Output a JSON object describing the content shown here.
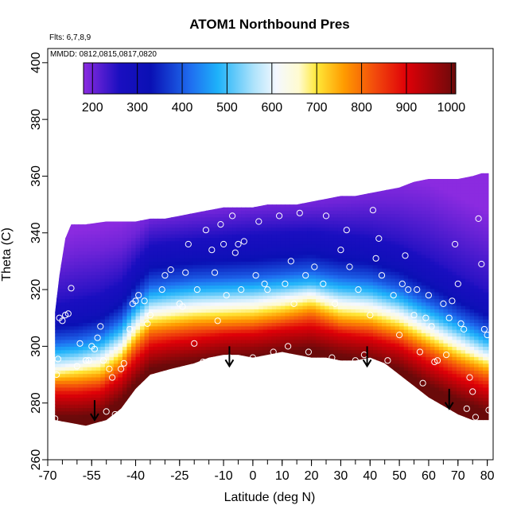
{
  "chart_data": {
    "type": "heatmap",
    "title": "ATOM1 Northbound Pres",
    "annotations": {
      "flights": "Flts: 6,7,8,9",
      "dates": "MMDD: 0812,0815,0817,0820"
    },
    "xlabel": "Latitude (deg N)",
    "ylabel": "Theta (C)",
    "xlim": [
      -70,
      82
    ],
    "ylim": [
      260,
      405
    ],
    "x_ticks": [
      -70,
      -55,
      -40,
      -25,
      -10,
      0,
      10,
      20,
      30,
      40,
      50,
      60,
      70,
      80
    ],
    "x_tick_labels": [
      "-70",
      "-55",
      "-40",
      "-25",
      "-10",
      "0",
      "10",
      "20",
      "30",
      "40",
      "50",
      "60",
      "70",
      "80"
    ],
    "x_minor_step": 5,
    "y_ticks": [
      260,
      280,
      300,
      320,
      340,
      360,
      380,
      400
    ],
    "y_tick_labels": [
      "260",
      "280",
      "300",
      "320",
      "340",
      "360",
      "380",
      "400"
    ],
    "colorbar": {
      "min": 180,
      "max": 1010,
      "ticks": [
        200,
        300,
        400,
        500,
        600,
        700,
        800,
        900,
        1000
      ],
      "tick_labels": [
        "200",
        "300",
        "400",
        "500",
        "600",
        "700",
        "800",
        "900",
        "1000"
      ],
      "stops": [
        {
          "value": 180,
          "color": "#8b2be0"
        },
        {
          "value": 260,
          "color": "#1a0fc0"
        },
        {
          "value": 330,
          "color": "#0a10b4"
        },
        {
          "value": 420,
          "color": "#1f6ff0"
        },
        {
          "value": 480,
          "color": "#1eb2fa"
        },
        {
          "value": 560,
          "color": "#aee3fb"
        },
        {
          "value": 610,
          "color": "#f4f8ff"
        },
        {
          "value": 660,
          "color": "#fffbd0"
        },
        {
          "value": 700,
          "color": "#ffe838"
        },
        {
          "value": 760,
          "color": "#ff9c00"
        },
        {
          "value": 830,
          "color": "#f24a0c"
        },
        {
          "value": 900,
          "color": "#df0008"
        },
        {
          "value": 1010,
          "color": "#6a0a0a"
        }
      ]
    },
    "domain_bottom": [
      [
        -67.5,
        274
      ],
      [
        -57,
        272
      ],
      [
        -50,
        274
      ],
      [
        -45,
        278
      ],
      [
        -40,
        285
      ],
      [
        -35,
        290
      ],
      [
        -28,
        292
      ],
      [
        -20,
        294
      ],
      [
        -15,
        296
      ],
      [
        -10,
        297
      ],
      [
        -5,
        297
      ],
      [
        0,
        296
      ],
      [
        5,
        297
      ],
      [
        10,
        298
      ],
      [
        15,
        297
      ],
      [
        20,
        296
      ],
      [
        25,
        296
      ],
      [
        30,
        295
      ],
      [
        35,
        295
      ],
      [
        40,
        296
      ],
      [
        45,
        294
      ],
      [
        50,
        290
      ],
      [
        55,
        286
      ],
      [
        60,
        282
      ],
      [
        65,
        279
      ],
      [
        70,
        276
      ],
      [
        75,
        274
      ],
      [
        80.5,
        274
      ]
    ],
    "domain_top": [
      [
        -67.5,
        312
      ],
      [
        -66,
        325
      ],
      [
        -64,
        338
      ],
      [
        -62,
        343
      ],
      [
        -57,
        343
      ],
      [
        -50,
        344
      ],
      [
        -40,
        344
      ],
      [
        -35,
        345
      ],
      [
        -30,
        345
      ],
      [
        -25,
        346
      ],
      [
        -20,
        347
      ],
      [
        -15,
        348
      ],
      [
        -10,
        349
      ],
      [
        -5,
        349
      ],
      [
        0,
        349
      ],
      [
        5,
        350
      ],
      [
        10,
        350
      ],
      [
        15,
        350
      ],
      [
        20,
        351
      ],
      [
        25,
        352
      ],
      [
        30,
        353
      ],
      [
        35,
        353
      ],
      [
        40,
        354
      ],
      [
        45,
        355
      ],
      [
        50,
        356
      ],
      [
        55,
        358
      ],
      [
        60,
        359
      ],
      [
        65,
        359
      ],
      [
        70,
        359
      ],
      [
        75,
        360
      ],
      [
        78,
        361
      ],
      [
        80.5,
        361
      ]
    ],
    "contour_isolines": {
      "description": "approximate centre (theta) of each pressure level vs latitude",
      "latitudes": [
        -68,
        -60,
        -52,
        -45,
        -40,
        -35,
        -28,
        -20,
        -10,
        0,
        10,
        20,
        30,
        40,
        50,
        60,
        70,
        80
      ],
      "levels": [
        {
          "pressure": 900,
          "theta": [
            283,
            283,
            284,
            289,
            295,
            300,
            301.5,
            302.5,
            304,
            304.5,
            306,
            307,
            304.5,
            303,
            300,
            294,
            289,
            285
          ]
        },
        {
          "pressure": 800,
          "theta": [
            287,
            287,
            288,
            293,
            300,
            305,
            306,
            307,
            307.5,
            308,
            309.5,
            311.5,
            308,
            307,
            304,
            299,
            294,
            290
          ]
        },
        {
          "pressure": 700,
          "theta": [
            290,
            291,
            292,
            297,
            304,
            309,
            310,
            311,
            311.5,
            312,
            313.5,
            315.5,
            312,
            311,
            308,
            303,
            298,
            294
          ]
        },
        {
          "pressure": 600,
          "theta": [
            293,
            294,
            296,
            301,
            308,
            313,
            314,
            315,
            315.5,
            316,
            317.5,
            319,
            316,
            315,
            312,
            307,
            302,
            297
          ]
        },
        {
          "pressure": 500,
          "theta": [
            297,
            298,
            300,
            305,
            312,
            317,
            318,
            319,
            319.5,
            320,
            321,
            322,
            320,
            319,
            316,
            311,
            306,
            301
          ]
        },
        {
          "pressure": 400,
          "theta": [
            302,
            303,
            305,
            310,
            317,
            322,
            323,
            324,
            324.5,
            325,
            326,
            327,
            325,
            324,
            321,
            316,
            311,
            306
          ]
        },
        {
          "pressure": 300,
          "theta": [
            309,
            310,
            312,
            317,
            324,
            330,
            331,
            332,
            332.5,
            333,
            334,
            335,
            333,
            332,
            329,
            324,
            318,
            313
          ]
        },
        {
          "pressure": 250,
          "theta": [
            316,
            318,
            320,
            324,
            331,
            337,
            338,
            339,
            340,
            341,
            341.5,
            342,
            341,
            340,
            337,
            332,
            326,
            320
          ]
        },
        {
          "pressure": 200,
          "theta": [
            330,
            333,
            334,
            336,
            340,
            345,
            346,
            347,
            348,
            349,
            349.5,
            350,
            351,
            352,
            352,
            350,
            345,
            340
          ]
        }
      ]
    },
    "arrows": [
      {
        "lat": -54,
        "theta": 281
      },
      {
        "lat": -8,
        "theta": 300
      },
      {
        "lat": 39,
        "theta": 300
      },
      {
        "lat": 67,
        "theta": 285
      }
    ],
    "observations": [
      [
        -67.5,
        274.5
      ],
      [
        -67,
        290
      ],
      [
        -66.5,
        295.5
      ],
      [
        -66,
        310
      ],
      [
        -65,
        309
      ],
      [
        -64,
        311
      ],
      [
        -63,
        311.5
      ],
      [
        -62,
        320.5
      ],
      [
        -60,
        293
      ],
      [
        -59,
        301
      ],
      [
        -57,
        295
      ],
      [
        -56,
        295
      ],
      [
        -55,
        300
      ],
      [
        -54,
        299
      ],
      [
        -53,
        303
      ],
      [
        -52,
        307
      ],
      [
        -51,
        295
      ],
      [
        -50,
        277
      ],
      [
        -49,
        292
      ],
      [
        -48,
        289
      ],
      [
        -47,
        276
      ],
      [
        -45,
        292
      ],
      [
        -44,
        294
      ],
      [
        -42,
        306
      ],
      [
        -41,
        315
      ],
      [
        -40,
        316
      ],
      [
        -39,
        318
      ],
      [
        -37,
        316
      ],
      [
        -36,
        308
      ],
      [
        -35,
        311
      ],
      [
        -34,
        288.5
      ],
      [
        -31,
        320
      ],
      [
        -30,
        325
      ],
      [
        -28,
        327
      ],
      [
        -27,
        291
      ],
      [
        -25,
        315
      ],
      [
        -24,
        314
      ],
      [
        -23,
        326
      ],
      [
        -22,
        336
      ],
      [
        -20,
        301
      ],
      [
        -19,
        320
      ],
      [
        -17,
        294.5
      ],
      [
        -16,
        341
      ],
      [
        -14,
        334
      ],
      [
        -13,
        326
      ],
      [
        -12,
        309
      ],
      [
        -11,
        343
      ],
      [
        -10,
        336
      ],
      [
        -9,
        318
      ],
      [
        -8,
        296
      ],
      [
        -7,
        346
      ],
      [
        -6,
        333
      ],
      [
        -5,
        336
      ],
      [
        -4,
        320
      ],
      [
        -3,
        337
      ],
      [
        0,
        296
      ],
      [
        1,
        325
      ],
      [
        2,
        344
      ],
      [
        4,
        322
      ],
      [
        5,
        320
      ],
      [
        7,
        298
      ],
      [
        9,
        346
      ],
      [
        11,
        322
      ],
      [
        12,
        300
      ],
      [
        13,
        330
      ],
      [
        14,
        315
      ],
      [
        16,
        347
      ],
      [
        18,
        325
      ],
      [
        19,
        298
      ],
      [
        21,
        328
      ],
      [
        24,
        322
      ],
      [
        25,
        346
      ],
      [
        27,
        296
      ],
      [
        28,
        315
      ],
      [
        30,
        334
      ],
      [
        32,
        341
      ],
      [
        33,
        328
      ],
      [
        35,
        295
      ],
      [
        36,
        320
      ],
      [
        38,
        297
      ],
      [
        40,
        311
      ],
      [
        41,
        348
      ],
      [
        42,
        331
      ],
      [
        43,
        338
      ],
      [
        44,
        325
      ],
      [
        46,
        295
      ],
      [
        48,
        318
      ],
      [
        50,
        304
      ],
      [
        51,
        322
      ],
      [
        52,
        332
      ],
      [
        53,
        320
      ],
      [
        55,
        311
      ],
      [
        56,
        320
      ],
      [
        57,
        298
      ],
      [
        58,
        287
      ],
      [
        59,
        310
      ],
      [
        60,
        318
      ],
      [
        61,
        307
      ],
      [
        62,
        294.5
      ],
      [
        63,
        295
      ],
      [
        65,
        315
      ],
      [
        66,
        297
      ],
      [
        67,
        310
      ],
      [
        68,
        316
      ],
      [
        69,
        336
      ],
      [
        70,
        322
      ],
      [
        71,
        308
      ],
      [
        72,
        306
      ],
      [
        73,
        278
      ],
      [
        74,
        289
      ],
      [
        75,
        284
      ],
      [
        76,
        275
      ],
      [
        77,
        345
      ],
      [
        78,
        329
      ],
      [
        79,
        306
      ],
      [
        80,
        304
      ],
      [
        80.5,
        277.5
      ]
    ]
  }
}
